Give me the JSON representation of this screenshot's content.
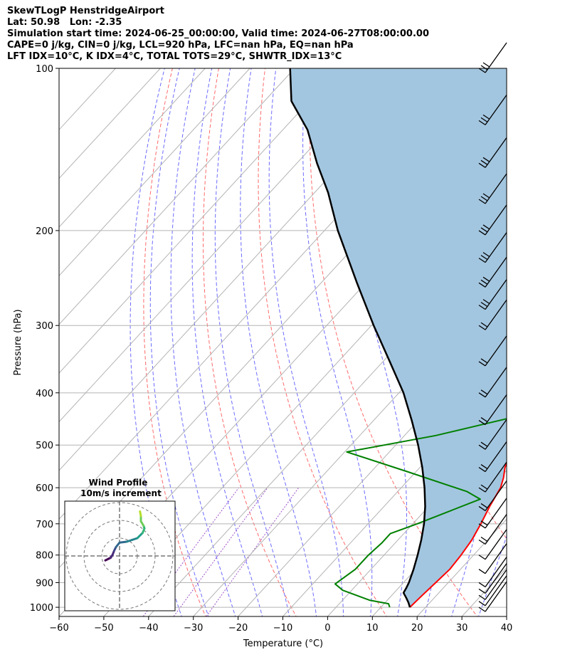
{
  "title_lines": [
    "SkewTLogP HenstridgeAirport",
    "Lat: 50.98   Lon: -2.35",
    "Simulation start time: 2024-06-25_00:00:00, Valid time: 2024-06-27T08:00:00.00",
    "CAPE=0 j/kg, CIN=0 j/kg, LCL=920 hPa, LFC=nan hPa, EQ=nan hPa",
    "LFT IDX=10°C, K IDX=4°C, TOTAL TOTS=29°C, SHWTR_IDX=13°C"
  ],
  "chart_data": [
    {
      "type": "line",
      "subtype": "skew-t log-p",
      "xlabel": "Temperature ($^\\circ$C)",
      "xlabel_display": "Temperature (°C)",
      "ylabel": "Pressure (hPa)",
      "x_ticks": [
        -60,
        -50,
        -40,
        -30,
        -20,
        -10,
        0,
        10,
        20,
        30,
        40
      ],
      "x_tick_labels": [
        "−60",
        "−50",
        "−40",
        "−30",
        "−20",
        "−10",
        "0",
        "10",
        "20",
        "30",
        "40"
      ],
      "y_ticks": [
        1000,
        900,
        800,
        700,
        600,
        500,
        400,
        300,
        200,
        100
      ],
      "xlim": [
        -60,
        40
      ],
      "ylim": [
        1040,
        100
      ],
      "y_scale": "log",
      "grid": true,
      "shaded_area": "between parcel profile and environmental temperature",
      "colors": {
        "temperature": "#ff0000",
        "dewpoint": "#008000",
        "parcel": "#000000",
        "shading": "#a3c6e0",
        "dry_adiabats": "#ff6a6a",
        "moist_adiabats": "#6b6bff",
        "mixing_ratio": "#9b4fc7",
        "grid": "#b4b4b4"
      },
      "series": [
        {
          "name": "temperature",
          "points": [
            [
              16.5,
              1000
            ],
            [
              16.8,
              950
            ],
            [
              17.2,
              900
            ],
            [
              17.6,
              850
            ],
            [
              17.2,
              800
            ],
            [
              16.5,
              750
            ],
            [
              15.2,
              700
            ],
            [
              13.6,
              650
            ],
            [
              12.2,
              600
            ],
            [
              10.8,
              575
            ],
            [
              9.0,
              550
            ],
            [
              6.5,
              500
            ],
            [
              5.6,
              480
            ],
            [
              5.5,
              450
            ],
            [
              4.5,
              420
            ],
            [
              3.0,
              400
            ],
            [
              -2.0,
              350
            ],
            [
              -6.0,
              300
            ],
            [
              -8.5,
              280
            ],
            [
              -12.0,
              260
            ],
            [
              -14.5,
              245
            ],
            [
              -16.5,
              235
            ],
            [
              -16.0,
              230
            ],
            [
              -15.5,
              220
            ],
            [
              -15.0,
              210
            ],
            [
              -12.0,
              200
            ],
            [
              -8.5,
              190
            ],
            [
              -7.0,
              180
            ],
            [
              -6.0,
              170
            ],
            [
              -5.5,
              160
            ],
            [
              -5.5,
              150
            ],
            [
              -5.0,
              145
            ],
            [
              -4.5,
              140
            ],
            [
              -3.0,
              130
            ],
            [
              -2.0,
              120
            ],
            [
              -1.5,
              110
            ],
            [
              -1.0,
              100
            ]
          ]
        },
        {
          "name": "dewpoint",
          "points": [
            [
              12.0,
              1000
            ],
            [
              11.0,
              985
            ],
            [
              6.0,
              970
            ],
            [
              -2.0,
              930
            ],
            [
              -5.0,
              905
            ],
            [
              -3.5,
              850
            ],
            [
              -3.5,
              800
            ],
            [
              -3.0,
              760
            ],
            [
              -3.0,
              730
            ],
            [
              1.0,
              700
            ],
            [
              6.0,
              660
            ],
            [
              10.0,
              630
            ],
            [
              5.5,
              610
            ],
            [
              -12.0,
              560
            ],
            [
              -29.5,
              515
            ],
            [
              -13.0,
              480
            ],
            [
              2.0,
              440
            ],
            [
              3.5,
              420
            ],
            [
              2.0,
              400
            ],
            [
              -1.0,
              370
            ],
            [
              -5.0,
              340
            ],
            [
              -10.0,
              300
            ],
            [
              -13.0,
              280
            ],
            [
              -17.5,
              260
            ],
            [
              -19.5,
              240
            ],
            [
              -20.5,
              220
            ],
            [
              -21.0,
              200
            ],
            [
              -21.0,
              195
            ],
            [
              -22.5,
              185
            ],
            [
              -22.0,
              175
            ],
            [
              -22.5,
              165
            ],
            [
              -24.5,
              158
            ],
            [
              -27.5,
              150
            ],
            [
              -27.0,
              145
            ],
            [
              -25.0,
              140
            ],
            [
              -23.0,
              132
            ],
            [
              -20.5,
              125
            ],
            [
              -17.5,
              115
            ],
            [
              -15.5,
              110
            ],
            [
              -13.5,
              105
            ],
            [
              -12.0,
              100
            ]
          ]
        },
        {
          "name": "parcel",
          "points": [
            [
              16.5,
              1000
            ],
            [
              15.2,
              980
            ],
            [
              13.7,
              960
            ],
            [
              12.1,
              940
            ],
            [
              11.7,
              920
            ],
            [
              11.2,
              900
            ],
            [
              9.5,
              850
            ],
            [
              7.5,
              800
            ],
            [
              5.2,
              750
            ],
            [
              2.5,
              700
            ],
            [
              -0.8,
              650
            ],
            [
              -4.8,
              600
            ],
            [
              -9.5,
              550
            ],
            [
              -15.0,
              500
            ],
            [
              -21.5,
              450
            ],
            [
              -29.0,
              400
            ],
            [
              -38.5,
              350
            ],
            [
              -49.5,
              300
            ],
            [
              -62.0,
              250
            ],
            [
              -77.0,
              200
            ],
            [
              -87.0,
              170
            ],
            [
              -95.5,
              150
            ],
            [
              -104.5,
              130
            ],
            [
              -114.0,
              115
            ],
            [
              -121.0,
              100
            ]
          ]
        }
      ],
      "wind_barbs": {
        "color": "#000000",
        "levels": [
          1000,
          975,
          950,
          925,
          900,
          850,
          800,
          750,
          700,
          650,
          600,
          550,
          500,
          450,
          400,
          350,
          300,
          275,
          250,
          225,
          200,
          175,
          150,
          125,
          100
        ]
      }
    },
    {
      "type": "scatter",
      "subtype": "hodograph",
      "title": "Wind Profile",
      "subtitle": "10m/s increment",
      "ring_spacing_ms": 10,
      "colormap": "viridis",
      "points": [
        [
          -8,
          -2.5
        ],
        [
          -6,
          -1.5
        ],
        [
          -5,
          -1
        ],
        [
          -4,
          0.5
        ],
        [
          -3,
          3
        ],
        [
          -2,
          5
        ],
        [
          0,
          7.5
        ],
        [
          4,
          8
        ],
        [
          7,
          9
        ],
        [
          10,
          10
        ],
        [
          13,
          13
        ],
        [
          14,
          15.5
        ],
        [
          13.5,
          17
        ],
        [
          12,
          19.5
        ],
        [
          12,
          22.5
        ],
        [
          11.5,
          25
        ]
      ]
    }
  ]
}
